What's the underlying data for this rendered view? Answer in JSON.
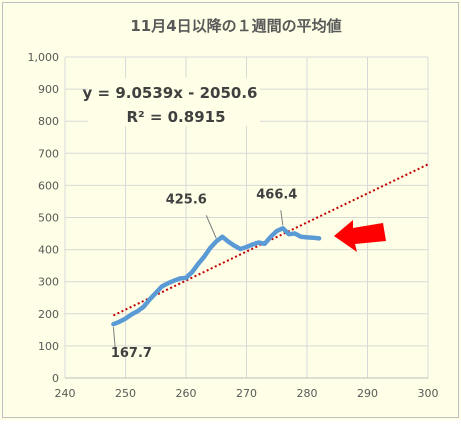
{
  "chart_data": {
    "type": "line",
    "title": "11月4日以降の１週間の平均値",
    "xlabel": "",
    "ylabel": "",
    "xlim": [
      240,
      300
    ],
    "ylim": [
      0,
      1000
    ],
    "x_ticks": [
      240,
      250,
      260,
      270,
      280,
      290,
      300
    ],
    "y_ticks": [
      0,
      100,
      200,
      300,
      400,
      500,
      600,
      700,
      800,
      900,
      1000
    ],
    "y_tick_labels": [
      "0",
      "100",
      "200",
      "300",
      "400",
      "500",
      "600",
      "700",
      "800",
      "900",
      "1,000"
    ],
    "grid": true,
    "series": [
      {
        "color": "#5b9bd5",
        "x": [
          248,
          249,
          250,
          251,
          252,
          253,
          254,
          255,
          256,
          257,
          258,
          259,
          260,
          261,
          262,
          263,
          264,
          265,
          266,
          267,
          268,
          269,
          270,
          271,
          272,
          273,
          274,
          275,
          276,
          277,
          278,
          279,
          280,
          281,
          282
        ],
        "y": [
          167.7,
          175,
          185,
          198,
          208,
          222,
          245,
          265,
          285,
          295,
          303,
          310,
          312,
          330,
          355,
          378,
          405,
          425.6,
          440,
          425,
          412,
          402,
          408,
          416,
          422,
          418,
          440,
          458,
          466.4,
          448,
          450,
          440,
          438,
          437,
          435
        ]
      }
    ],
    "trendline": {
      "color": "#c00000",
      "x": [
        248,
        300
      ],
      "equation_text": "y = 9.0539x - 2050.6",
      "r2_text": "R² = 0.8915"
    },
    "annotations": [
      {
        "text": "167.7",
        "x": 248,
        "y": 167.7
      },
      {
        "text": "425.6",
        "x": 265,
        "y": 425.6
      },
      {
        "text": "466.4",
        "x": 276,
        "y": 466.4
      }
    ],
    "arrow_color": "#ff0000",
    "background_color": "#fffee6",
    "grid_color": "#d9d9d9"
  }
}
